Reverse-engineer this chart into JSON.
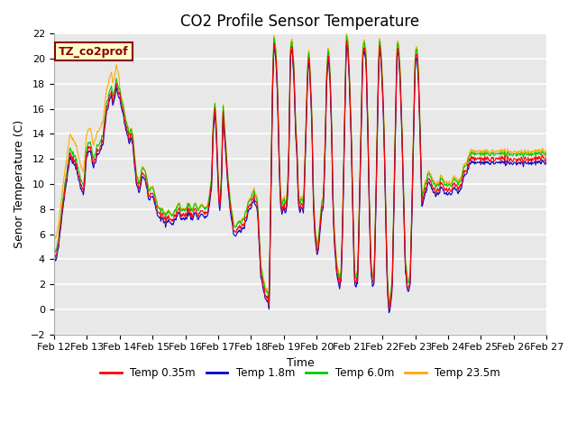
{
  "title": "CO2 Profile Sensor Temperature",
  "xlabel": "Time",
  "ylabel": "Senor Temperature (C)",
  "ylim": [
    -2,
    22
  ],
  "yticks": [
    -2,
    0,
    2,
    4,
    6,
    8,
    10,
    12,
    14,
    16,
    18,
    20,
    22
  ],
  "date_labels": [
    "Feb 12",
    "Feb 13",
    "Feb 14",
    "Feb 15",
    "Feb 16",
    "Feb 17",
    "Feb 18",
    "Feb 19",
    "Feb 20",
    "Feb 21",
    "Feb 22",
    "Feb 23",
    "Feb 24",
    "Feb 25",
    "Feb 26",
    "Feb 27"
  ],
  "annotation": "TZ_co2prof",
  "legend_labels": [
    "Temp 0.35m",
    "Temp 1.8m",
    "Temp 6.0m",
    "Temp 23.5m"
  ],
  "line_colors": [
    "#ff0000",
    "#0000cc",
    "#00cc00",
    "#ffaa00"
  ],
  "bg_color": "#e8e8e8",
  "title_fontsize": 12,
  "label_fontsize": 9,
  "tick_fontsize": 8
}
